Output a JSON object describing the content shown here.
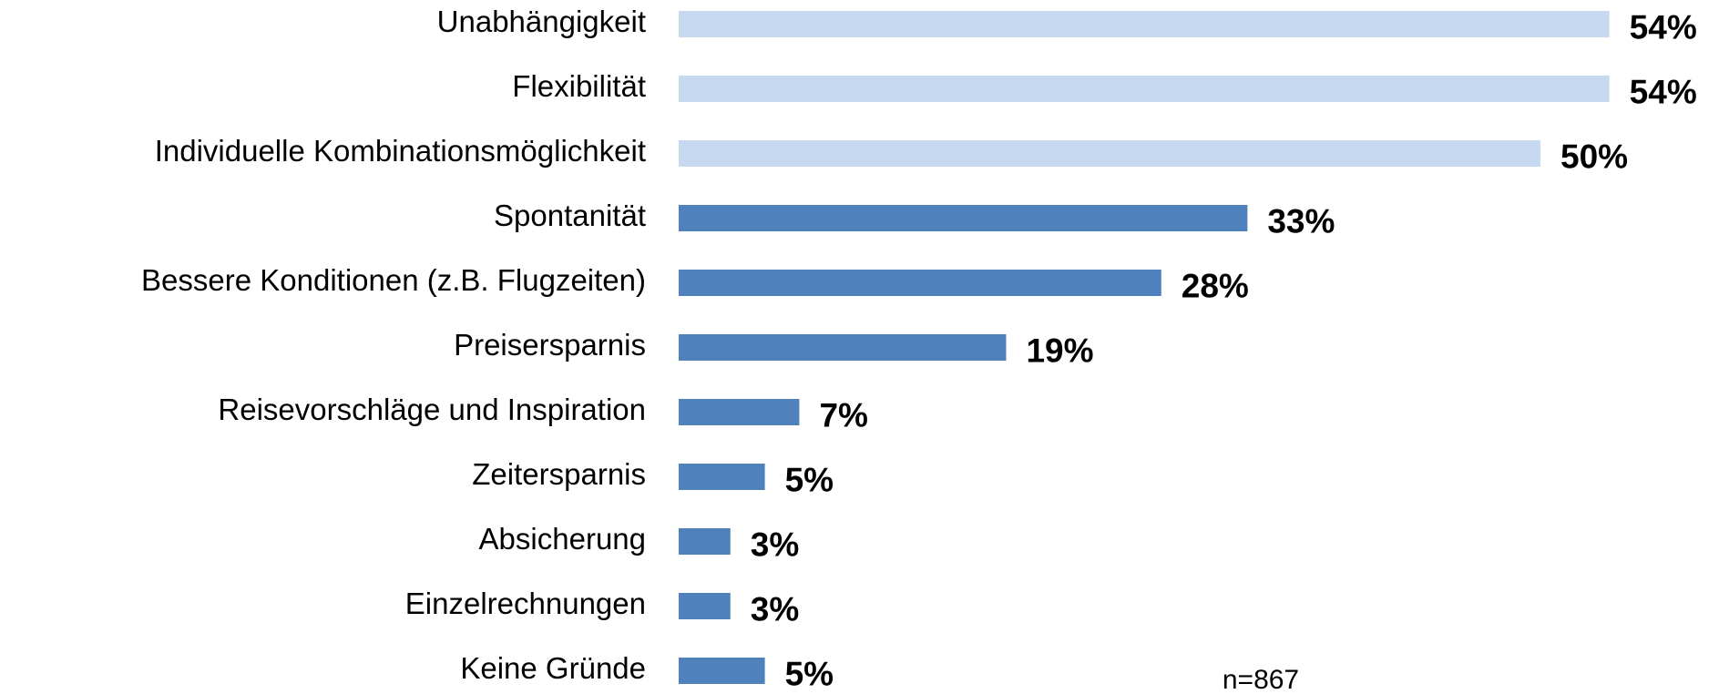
{
  "chart_data": {
    "type": "barh",
    "categories": [
      "Unabhängigkeit",
      "Flexibilität",
      "Individuelle Kombinationsmöglichkeit",
      "Spontanität",
      "Bessere Konditionen (z.B. Flugzeiten)",
      "Preisersparnis",
      "Reisevorschläge und Inspiration",
      "Zeitersparnis",
      "Absicherung",
      "Einzelrechnungen",
      "Keine Gründe"
    ],
    "values": [
      54,
      54,
      50,
      33,
      28,
      19,
      7,
      5,
      3,
      3,
      5
    ],
    "value_labels": [
      "54%",
      "54%",
      "50%",
      "33%",
      "28%",
      "19%",
      "7%",
      "5%",
      "3%",
      "3%",
      "5%"
    ],
    "colors": [
      "#c6d9f1",
      "#c6d9f1",
      "#c6d9f1",
      "#4f81bd",
      "#4f81bd",
      "#4f81bd",
      "#4f81bd",
      "#4f81bd",
      "#4f81bd",
      "#4f81bd",
      "#4f81bd"
    ],
    "annotation": "n=867"
  }
}
